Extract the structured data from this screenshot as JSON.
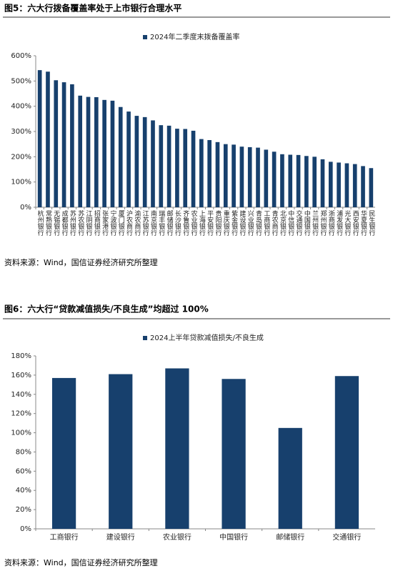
{
  "chart_data": [
    {
      "type": "bar",
      "title": "图5：六大行拨备覆盖率处于上市银行合理水平",
      "categories": [
        "杭州银行",
        "常熟银行",
        "无锡银行",
        "成都银行",
        "苏州银行",
        "苏农银行",
        "江阴银行",
        "招商银行",
        "张家港行",
        "宁波银行",
        "厦门银行",
        "沪农商行",
        "渝农商行",
        "江苏银行",
        "南京银行",
        "瑞丰银行",
        "邮储银行",
        "长沙银行",
        "齐鲁银行",
        "农业银行",
        "上海银行",
        "平安银行",
        "贵阳银行",
        "重庆银行",
        "紫金银行",
        "建设银行",
        "兴业银行",
        "青岛银行",
        "工商银行",
        "青农商行",
        "北京银行",
        "中信银行",
        "交通银行",
        "中国银行",
        "兰州银行",
        "郑州银行",
        "浙商银行",
        "浦发银行",
        "光大银行",
        "西安银行",
        "华夏银行",
        "民生银行"
      ],
      "series": [
        {
          "name": "2024年二季度末拨备覆盖率",
          "color": "#17406d",
          "values": [
            543,
            537,
            503,
            495,
            487,
            442,
            437,
            436,
            425,
            422,
            397,
            379,
            362,
            357,
            344,
            325,
            323,
            311,
            310,
            303,
            270,
            266,
            258,
            250,
            248,
            240,
            238,
            236,
            228,
            220,
            210,
            208,
            207,
            203,
            200,
            190,
            180,
            177,
            174,
            171,
            163,
            155
          ]
        }
      ],
      "ylim": [
        0,
        600
      ],
      "yticks": [
        {
          "value": 0,
          "label": "0%"
        },
        {
          "value": 100,
          "label": "100%"
        },
        {
          "value": 200,
          "label": "200%"
        },
        {
          "value": 300,
          "label": "300%"
        },
        {
          "value": 400,
          "label": "400%"
        },
        {
          "value": 500,
          "label": "500%"
        },
        {
          "value": 600,
          "label": "600%"
        }
      ],
      "source": "资料来源：Wind，国信证券经济研究所整理"
    },
    {
      "type": "bar",
      "title": "图6：六大行“贷款减值损失/不良生成”均超过 100%",
      "categories": [
        "工商银行",
        "建设银行",
        "农业银行",
        "中国银行",
        "邮储银行",
        "交通银行"
      ],
      "series": [
        {
          "name": "2024上半年贷款减值损失/不良生成",
          "color": "#17406d",
          "values": [
            157,
            161,
            167,
            156,
            105,
            159
          ]
        }
      ],
      "ylim": [
        0,
        180
      ],
      "yticks": [
        {
          "value": 0,
          "label": "0%"
        },
        {
          "value": 20,
          "label": "20%"
        },
        {
          "value": 40,
          "label": "40%"
        },
        {
          "value": 60,
          "label": "60%"
        },
        {
          "value": 80,
          "label": "80%"
        },
        {
          "value": 100,
          "label": "100%"
        },
        {
          "value": 120,
          "label": "120%"
        },
        {
          "value": 140,
          "label": "140%"
        },
        {
          "value": 160,
          "label": "160%"
        },
        {
          "value": 180,
          "label": "180%"
        }
      ],
      "source": "资料来源：Wind，国信证券经济研究所整理"
    }
  ]
}
